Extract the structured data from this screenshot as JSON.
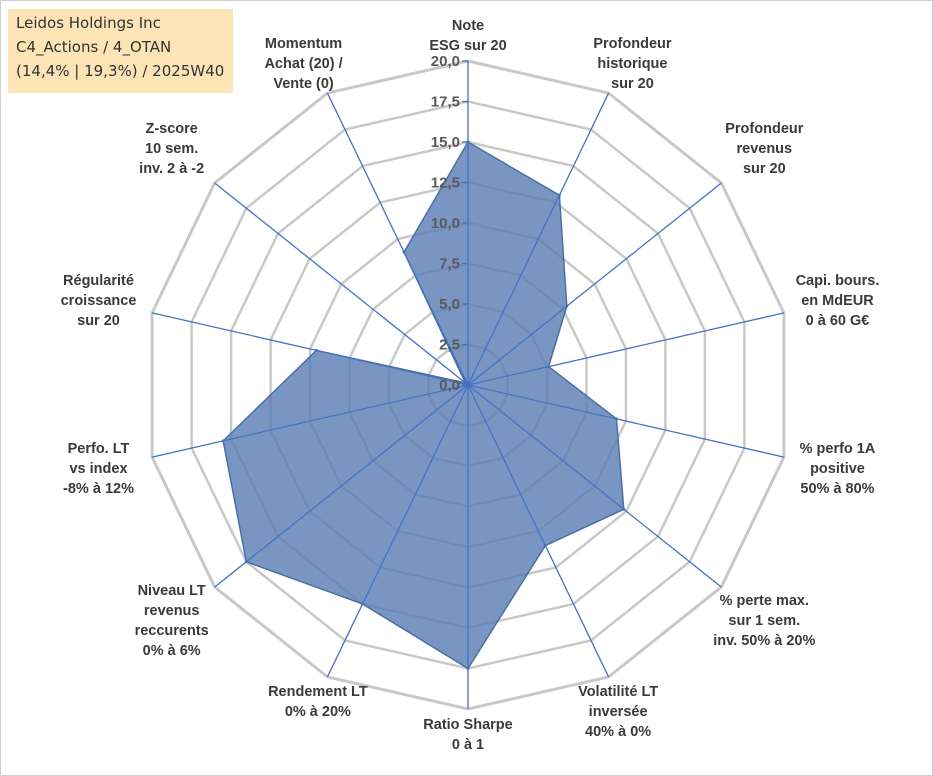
{
  "info_box": {
    "line1": "Leidos Holdings Inc",
    "line2": "C4_Actions / 4_OTAN",
    "line3": "(14,4% | 19,3%) / 2025W40"
  },
  "colors": {
    "fill": "#5b7fb5",
    "fill_opacity": "0.82",
    "polygon_stroke": "#4a6fa5",
    "spoke": "#4472c4",
    "grid": "#c8c8c8",
    "info_bg": "#fce4b6"
  },
  "chart_data": {
    "type": "radar",
    "title": "",
    "range": [
      0,
      20
    ],
    "ticks": [
      "0,0",
      "2,5",
      "5,0",
      "7,5",
      "10,0",
      "12,5",
      "15,0",
      "17,5",
      "20,0"
    ],
    "axes": [
      {
        "label": [
          "Note",
          "ESG sur 20"
        ],
        "value": 15.0
      },
      {
        "label": [
          "Profondeur",
          "historique",
          "sur 20"
        ],
        "value": 13.0
      },
      {
        "label": [
          "Profondeur",
          "revenus",
          "sur 20"
        ],
        "value": 7.8
      },
      {
        "label": [
          "Capi. bours.",
          "en MdEUR",
          "0 à 60 G€"
        ],
        "value": 5.1
      },
      {
        "label": [
          "% perfo 1A",
          "positive",
          "50% à 80%"
        ],
        "value": 9.4
      },
      {
        "label": [
          "% perte max.",
          "sur 1 sem.",
          "inv. 50% à 20%"
        ],
        "value": 12.3
      },
      {
        "label": [
          "Volatilité LT",
          "inversée",
          "40% à 0%"
        ],
        "value": 11.0
      },
      {
        "label": [
          "Ratio Sharpe",
          "0 à 1"
        ],
        "value": 17.5
      },
      {
        "label": [
          "Rendement LT",
          "0% à 20%"
        ],
        "value": 15.0
      },
      {
        "label": [
          "Niveau LT",
          "revenus",
          "reccurents",
          "0% à 6%"
        ],
        "value": 17.5
      },
      {
        "label": [
          "Perfo. LT",
          "vs index",
          "-8% à 12%"
        ],
        "value": 15.5
      },
      {
        "label": [
          "Régularité",
          "croissance",
          "sur 20"
        ],
        "value": 9.6
      },
      {
        "label": [
          "Z-score",
          "10 sem.",
          "inv. 2 à -2"
        ],
        "value": 0.2
      },
      {
        "label": [
          "Momentum",
          "Achat (20) /",
          "Vente (0)"
        ],
        "value": 9.1
      }
    ]
  }
}
